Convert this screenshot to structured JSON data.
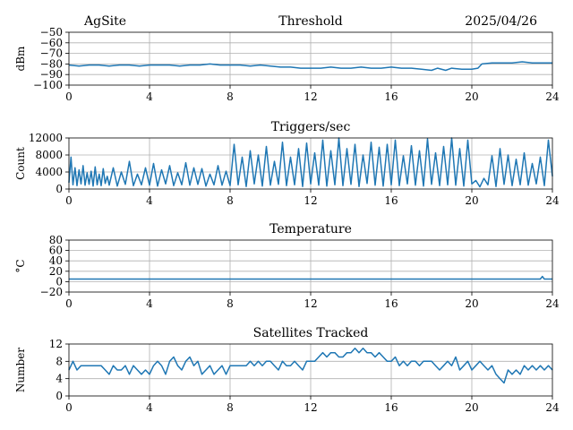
{
  "header": {
    "site": "AgSite",
    "date": "2025/04/26"
  },
  "chart_data": [
    {
      "type": "line",
      "title": "Threshold",
      "ylabel": "dBm",
      "xlim": [
        0,
        24
      ],
      "ylim": [
        -100,
        -50
      ],
      "xticks": [
        0,
        4,
        8,
        12,
        16,
        20,
        24
      ],
      "yticks": [
        -100,
        -90,
        -80,
        -70,
        -60,
        -50
      ],
      "ytick_labels": [
        "−100",
        "−90",
        "−80",
        "−70",
        "−60",
        "−50"
      ],
      "grid": true,
      "series": [
        {
          "color": "#1f77b4",
          "x": [
            0,
            0.5,
            1,
            1.5,
            2,
            2.5,
            3,
            3.5,
            4,
            4.5,
            5,
            5.5,
            6,
            6.5,
            7,
            7.5,
            8,
            8.5,
            9,
            9.5,
            10,
            10.5,
            11,
            11.5,
            12,
            12.5,
            13,
            13.5,
            14,
            14.5,
            15,
            15.5,
            16,
            16.5,
            17,
            17.5,
            18,
            18.3,
            18.7,
            19,
            19.5,
            20,
            20.3,
            20.5,
            21,
            21.5,
            22,
            22.5,
            23,
            23.5,
            24
          ],
          "y": [
            -81,
            -82,
            -81,
            -81,
            -82,
            -81,
            -81,
            -82,
            -81,
            -81,
            -81,
            -82,
            -81,
            -81,
            -80,
            -81,
            -81,
            -81,
            -82,
            -81,
            -82,
            -83,
            -83,
            -84,
            -84,
            -84,
            -83,
            -84,
            -84,
            -83,
            -84,
            -84,
            -83,
            -84,
            -84,
            -85,
            -86,
            -84,
            -86,
            -84,
            -85,
            -85,
            -84,
            -80,
            -79,
            -79,
            -79,
            -78,
            -79,
            -79,
            -79
          ]
        }
      ]
    },
    {
      "type": "line",
      "title": "Triggers/sec",
      "ylabel": "Count",
      "xlim": [
        0,
        24
      ],
      "ylim": [
        0,
        12000
      ],
      "xticks": [
        0,
        4,
        8,
        12,
        16,
        20,
        24
      ],
      "yticks": [
        0,
        4000,
        8000,
        12000
      ],
      "ytick_labels": [
        "0",
        "4000",
        "8000",
        "12000"
      ],
      "grid": true,
      "series": [
        {
          "color": "#1f77b4",
          "x": [
            0,
            0.1,
            0.2,
            0.3,
            0.4,
            0.5,
            0.6,
            0.7,
            0.8,
            0.9,
            1.0,
            1.1,
            1.2,
            1.3,
            1.4,
            1.5,
            1.6,
            1.7,
            1.8,
            1.9,
            2.0,
            2.2,
            2.4,
            2.6,
            2.8,
            3.0,
            3.2,
            3.4,
            3.6,
            3.8,
            4.0,
            4.2,
            4.4,
            4.6,
            4.8,
            5.0,
            5.2,
            5.4,
            5.6,
            5.8,
            6.0,
            6.2,
            6.4,
            6.6,
            6.8,
            7.0,
            7.2,
            7.4,
            7.6,
            7.8,
            8.0,
            8.2,
            8.4,
            8.6,
            8.8,
            9.0,
            9.2,
            9.4,
            9.6,
            9.8,
            10.0,
            10.2,
            10.4,
            10.6,
            10.8,
            11.0,
            11.2,
            11.4,
            11.6,
            11.8,
            12.0,
            12.2,
            12.4,
            12.6,
            12.8,
            13.0,
            13.2,
            13.4,
            13.6,
            13.8,
            14.0,
            14.2,
            14.4,
            14.6,
            14.8,
            15.0,
            15.2,
            15.4,
            15.6,
            15.8,
            16.0,
            16.2,
            16.4,
            16.6,
            16.8,
            17.0,
            17.2,
            17.4,
            17.6,
            17.8,
            18.0,
            18.2,
            18.4,
            18.6,
            18.8,
            19.0,
            19.2,
            19.4,
            19.6,
            19.8,
            20.0,
            20.2,
            20.4,
            20.6,
            20.8,
            21.0,
            21.2,
            21.4,
            21.6,
            21.8,
            22.0,
            22.2,
            22.4,
            22.6,
            22.8,
            23.0,
            23.2,
            23.4,
            23.6,
            23.8,
            24.0
          ],
          "y": [
            1500,
            7500,
            1000,
            5000,
            800,
            4500,
            1200,
            5500,
            900,
            3800,
            1100,
            4200,
            700,
            5200,
            1000,
            3500,
            800,
            4800,
            1300,
            3000,
            900,
            5000,
            700,
            4000,
            1100,
            6500,
            800,
            3500,
            1000,
            5000,
            900,
            6000,
            700,
            4500,
            1200,
            5500,
            800,
            3800,
            1000,
            6200,
            900,
            5000,
            1100,
            4800,
            700,
            3500,
            1000,
            5500,
            900,
            4200,
            800,
            10500,
            1000,
            7500,
            600,
            9000,
            1200,
            8000,
            700,
            10000,
            900,
            6500,
            1100,
            11000,
            800,
            7500,
            1000,
            9500,
            600,
            10800,
            1200,
            8500,
            900,
            11500,
            700,
            9000,
            1000,
            12000,
            800,
            9500,
            1100,
            10500,
            600,
            8000,
            1300,
            11000,
            900,
            9800,
            700,
            10500,
            1000,
            11500,
            800,
            7800,
            1200,
            10200,
            900,
            9000,
            700,
            11800,
            1100,
            8500,
            800,
            10000,
            1000,
            12000,
            900,
            9500,
            700,
            11500,
            1200,
            2000,
            500,
            2500,
            1000,
            7800,
            600,
            9500,
            1100,
            8000,
            800,
            7000,
            1000,
            8500,
            900,
            6000,
            1200,
            7500,
            800,
            11500,
            3000
          ]
        }
      ]
    },
    {
      "type": "line",
      "title": "Temperature",
      "ylabel": "°C",
      "xlim": [
        0,
        24
      ],
      "ylim": [
        -20,
        80
      ],
      "xticks": [
        0,
        4,
        8,
        12,
        16,
        20,
        24
      ],
      "yticks": [
        -20,
        0,
        20,
        40,
        60,
        80
      ],
      "ytick_labels": [
        "−20",
        "0",
        "20",
        "40",
        "60",
        "80"
      ],
      "grid": true,
      "series": [
        {
          "color": "#1f77b4",
          "x": [
            0,
            4,
            8,
            12,
            16,
            20,
            23.4,
            23.5,
            23.6,
            24
          ],
          "y": [
            5,
            5,
            5,
            5,
            5,
            5,
            5,
            10,
            5,
            5
          ]
        }
      ]
    },
    {
      "type": "line",
      "title": "Satellites Tracked",
      "ylabel": "Number",
      "xlim": [
        0,
        24
      ],
      "ylim": [
        0,
        12
      ],
      "xticks": [
        0,
        4,
        8,
        12,
        16,
        20,
        24
      ],
      "yticks": [
        0,
        4,
        8,
        12
      ],
      "ytick_labels": [
        "0",
        "4",
        "8",
        "12"
      ],
      "grid": true,
      "series": [
        {
          "color": "#1f77b4",
          "x": [
            0,
            0.2,
            0.4,
            0.6,
            0.8,
            1.0,
            1.2,
            1.4,
            1.6,
            1.8,
            2.0,
            2.2,
            2.4,
            2.6,
            2.8,
            3.0,
            3.2,
            3.4,
            3.6,
            3.8,
            4.0,
            4.2,
            4.4,
            4.6,
            4.8,
            5.0,
            5.2,
            5.4,
            5.6,
            5.8,
            6.0,
            6.2,
            6.4,
            6.6,
            6.8,
            7.0,
            7.2,
            7.4,
            7.6,
            7.8,
            8.0,
            8.2,
            8.4,
            8.6,
            8.8,
            9.0,
            9.2,
            9.4,
            9.6,
            9.8,
            10.0,
            10.2,
            10.4,
            10.6,
            10.8,
            11.0,
            11.2,
            11.4,
            11.6,
            11.8,
            12.0,
            12.2,
            12.4,
            12.6,
            12.8,
            13.0,
            13.2,
            13.4,
            13.6,
            13.8,
            14.0,
            14.2,
            14.4,
            14.6,
            14.8,
            15.0,
            15.2,
            15.4,
            15.6,
            15.8,
            16.0,
            16.2,
            16.4,
            16.6,
            16.8,
            17.0,
            17.2,
            17.4,
            17.6,
            17.8,
            18.0,
            18.2,
            18.4,
            18.6,
            18.8,
            19.0,
            19.2,
            19.4,
            19.6,
            19.8,
            20.0,
            20.2,
            20.4,
            20.6,
            20.8,
            21.0,
            21.2,
            21.4,
            21.6,
            21.8,
            22.0,
            22.2,
            22.4,
            22.6,
            22.8,
            23.0,
            23.2,
            23.4,
            23.6,
            23.8,
            24.0
          ],
          "y": [
            6,
            8,
            6,
            7,
            7,
            7,
            7,
            7,
            7,
            6,
            5,
            7,
            6,
            6,
            7,
            5,
            7,
            6,
            5,
            6,
            5,
            7,
            8,
            7,
            5,
            8,
            9,
            7,
            6,
            8,
            9,
            7,
            8,
            5,
            6,
            7,
            5,
            6,
            7,
            5,
            7,
            7,
            7,
            7,
            7,
            8,
            7,
            8,
            7,
            8,
            8,
            7,
            6,
            8,
            7,
            7,
            8,
            7,
            6,
            8,
            8,
            8,
            9,
            10,
            9,
            10,
            10,
            9,
            9,
            10,
            10,
            11,
            10,
            11,
            10,
            10,
            9,
            10,
            9,
            8,
            8,
            9,
            7,
            8,
            7,
            8,
            8,
            7,
            8,
            8,
            8,
            7,
            6,
            7,
            8,
            7,
            9,
            6,
            7,
            8,
            6,
            7,
            8,
            7,
            6,
            7,
            5,
            4,
            3,
            6,
            5,
            6,
            5,
            7,
            6,
            7,
            6,
            7,
            6,
            7,
            6
          ]
        }
      ]
    }
  ]
}
